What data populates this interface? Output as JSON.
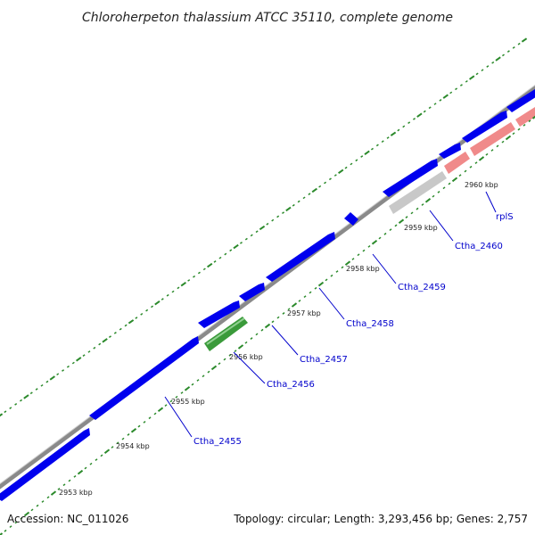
{
  "title": "Chloroherpeton thalassium ATCC 35110, complete genome",
  "footer": {
    "accession": "Accession: NC_011026",
    "summary": "Topology: circular; Length: 3,293,456 bp; Genes: 2,757"
  },
  "colors": {
    "backbone": "#8a8a8a",
    "forward_cds": "#0000ee",
    "reverse_cds": "#0000ee",
    "rna": "#3a9a3a",
    "pseudo": "#c8c8c8",
    "ribosomal": "#f08a8a",
    "ticks": "#2b8a2b",
    "label_line": "#0000cc"
  },
  "scale_ticks": [
    {
      "label": "2953 kbp",
      "kbp": 2953
    },
    {
      "label": "2954 kbp",
      "kbp": 2954
    },
    {
      "label": "2955 kbp",
      "kbp": 2955
    },
    {
      "label": "2956 kbp",
      "kbp": 2956
    },
    {
      "label": "2957 kbp",
      "kbp": 2957
    },
    {
      "label": "2958 kbp",
      "kbp": 2958
    },
    {
      "label": "2959 kbp",
      "kbp": 2959
    },
    {
      "label": "2960 kbp",
      "kbp": 2960
    }
  ],
  "genes": [
    {
      "name": "Ctha_2455",
      "strand": "+",
      "kind": "cds"
    },
    {
      "name": "Ctha_2456",
      "strand": "-",
      "kind": "rna"
    },
    {
      "name": "Ctha_2457",
      "strand": "+",
      "kind": "cds"
    },
    {
      "name": "Ctha_2458",
      "strand": "+",
      "kind": "cds"
    },
    {
      "name": "Ctha_2459",
      "strand": "+",
      "kind": "cds"
    },
    {
      "name": "Ctha_2460",
      "strand": "-",
      "kind": "pseudo"
    },
    {
      "name": "rplS",
      "strand": "-",
      "kind": "ribosomal"
    }
  ]
}
